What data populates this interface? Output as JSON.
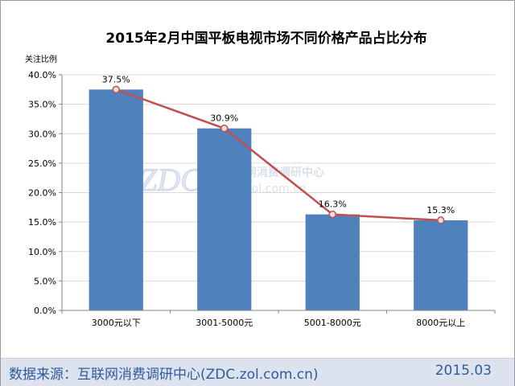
{
  "colors": {
    "bar": "#4f81bd",
    "line": "#c0504d",
    "marker_fill": "#f2dcdb",
    "axis": "#868686",
    "grid": "#d9d9d9",
    "text": "#000000",
    "footer_text": "#2f5b9c",
    "footer_bg": "#dde3ee",
    "watermark": "#dbe3ef"
  },
  "chart_data": {
    "type": "bar",
    "title": "2015年2月中国平板电视市场不同价格产品占比分布",
    "ylabel": "关注比例",
    "xlabel": "",
    "ylim": [
      0,
      40
    ],
    "yticks": [
      "0.0%",
      "5.0%",
      "10.0%",
      "15.0%",
      "20.0%",
      "25.0%",
      "30.0%",
      "35.0%",
      "40.0%"
    ],
    "ytick_values": [
      0,
      5,
      10,
      15,
      20,
      25,
      30,
      35,
      40
    ],
    "grid": true,
    "categories": [
      "3000元以下",
      "3001-5000元",
      "5001-8000元",
      "8000元以上"
    ],
    "values": [
      37.5,
      30.9,
      16.3,
      15.3
    ],
    "data_labels": [
      "37.5%",
      "30.9%",
      "16.3%",
      "15.3%"
    ],
    "overlay": {
      "type": "line",
      "values": [
        37.5,
        30.9,
        16.3,
        15.3
      ]
    }
  },
  "watermark": {
    "logo": "ZDC",
    "name": "互联网消费调研中心",
    "site": "zdc.zol.com.cn"
  },
  "footer": {
    "source": "数据来源：互联网消费调研中心(ZDC.zol.com.cn)",
    "date": "2015.03"
  }
}
